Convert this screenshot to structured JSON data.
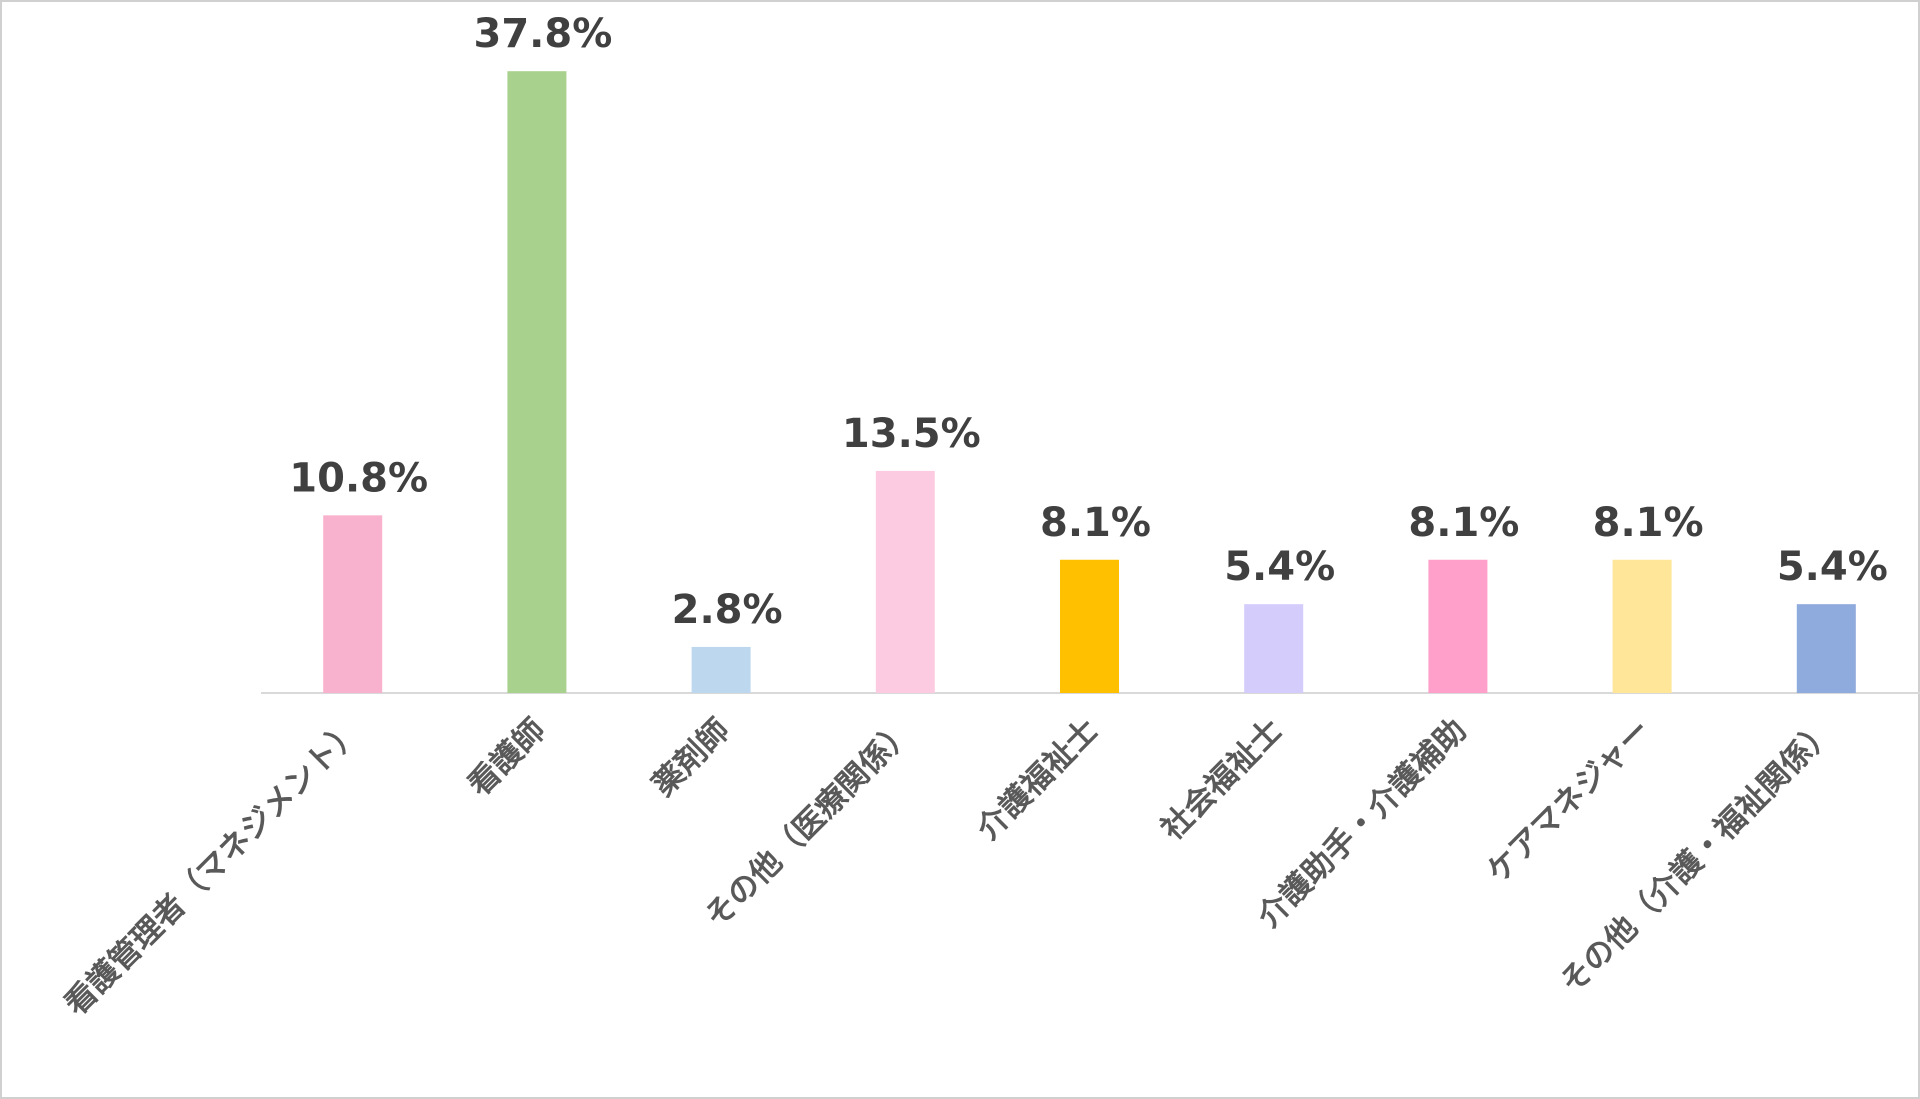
{
  "chart_data": {
    "type": "bar",
    "categories": [
      "看護管理者（マネジメント）",
      "看護師",
      "薬剤師",
      "その他（医療関係）",
      "介護福祉士",
      "社会福祉士",
      "介護助手・介護補助",
      "ケアマネジャー",
      "その他（介護・福祉関係）"
    ],
    "values": [
      10.8,
      37.8,
      2.8,
      13.5,
      8.1,
      5.4,
      8.1,
      8.1,
      5.4
    ],
    "value_labels": [
      "10.8%",
      "37.8%",
      "2.8%",
      "13.5%",
      "8.1%",
      "5.4%",
      "8.1%",
      "8.1%",
      "5.4%"
    ],
    "colors": [
      "#f8b2cd",
      "#a9d18e",
      "#bdd7ee",
      "#fccbe1",
      "#ffc000",
      "#d4ccfb",
      "#ffa0cb",
      "#ffe699",
      "#8faadc"
    ],
    "ylim": [
      0,
      40
    ]
  }
}
